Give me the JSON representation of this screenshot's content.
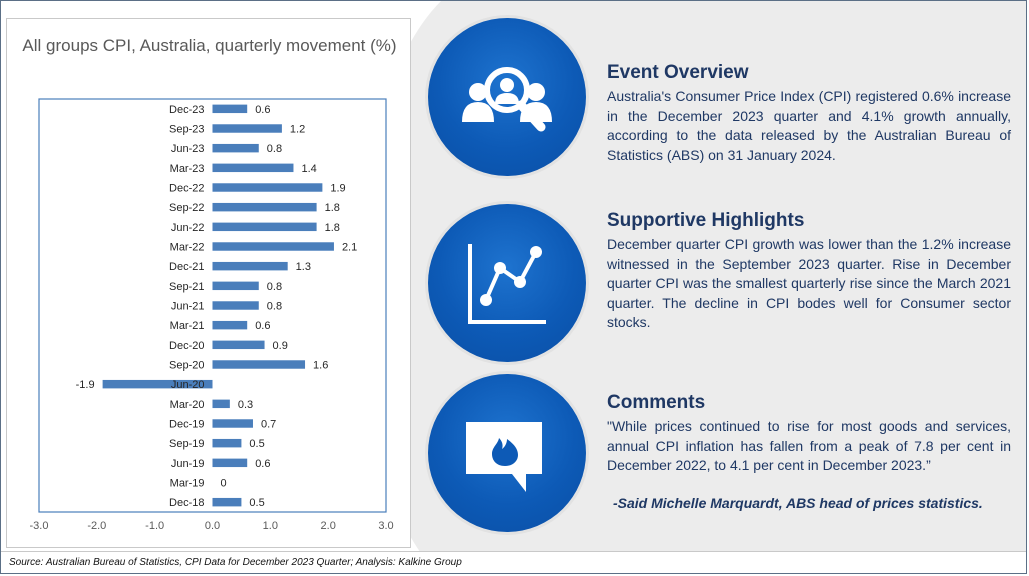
{
  "chart_data": {
    "type": "bar",
    "orientation": "horizontal",
    "title": "All groups CPI, Australia, quarterly movement (%)",
    "categories": [
      "Dec-23",
      "Sep-23",
      "Jun-23",
      "Mar-23",
      "Dec-22",
      "Sep-22",
      "Jun-22",
      "Mar-22",
      "Dec-21",
      "Sep-21",
      "Jun-21",
      "Mar-21",
      "Dec-20",
      "Sep-20",
      "Jun-20",
      "Mar-20",
      "Dec-19",
      "Sep-19",
      "Jun-19",
      "Mar-19",
      "Dec-18"
    ],
    "values": [
      0.6,
      1.2,
      0.8,
      1.4,
      1.9,
      1.8,
      1.8,
      2.1,
      1.3,
      0.8,
      0.8,
      0.6,
      0.9,
      1.6,
      -1.9,
      0.3,
      0.7,
      0.5,
      0.6,
      0,
      0.5
    ],
    "value_labels": [
      "0.6",
      "1.2",
      "0.8",
      "1.4",
      "1.9",
      "1.8",
      "1.8",
      "2.1",
      "1.3",
      "0.8",
      "0.8",
      "0.6",
      "0.9",
      "1.6",
      "-1.9",
      "0.3",
      "0.7",
      "0.5",
      "0.6",
      "0",
      "0.5"
    ],
    "xlim": [
      -3.0,
      3.0
    ],
    "xticks": [
      -3.0,
      -2.0,
      -1.0,
      0.0,
      1.0,
      2.0,
      3.0
    ],
    "xtick_labels": [
      "-3.0",
      "-2.0",
      "-1.0",
      "0.0",
      "1.0",
      "2.0",
      "3.0"
    ],
    "grid": false,
    "colors": {
      "bar": "#4a7ebb",
      "plot_border": "#4a7ebb",
      "text": "#262626"
    }
  },
  "sections": [
    {
      "title": "Event Overview",
      "icon": "people-magnifier-icon",
      "text": "Australia's Consumer Price Index (CPI) registered 0.6% increase in the December 2023 quarter and 4.1% growth annually, according to the data released by the Australian Bureau of Statistics (ABS) on 31 January 2024."
    },
    {
      "title": "Supportive Highlights",
      "icon": "line-chart-icon",
      "text": "December quarter CPI growth was lower than the 1.2% increase witnessed in the September 2023 quarter. Rise in December quarter CPI was the smallest quarterly rise since the March 2021 quarter. The decline in CPI bodes well for Consumer sector stocks."
    },
    {
      "title": "Comments",
      "icon": "speech-bubble-flame-icon",
      "text": "\"While prices continued to rise for most goods and services, annual CPI inflation has fallen from a peak of 7.8 per cent in December 2022, to 4.1 per cent in December 2023.”",
      "attribution": "-Said Michelle Marquardt, ABS head of prices statistics."
    }
  ],
  "footer": {
    "source": "Source: Australian Bureau of Statistics, CPI Data for December 2023 Quarter; Analysis: Kalkine Group"
  },
  "theme": {
    "accent": "#1565c0",
    "heading": "#1f3864",
    "background_shape": "#ececec"
  }
}
